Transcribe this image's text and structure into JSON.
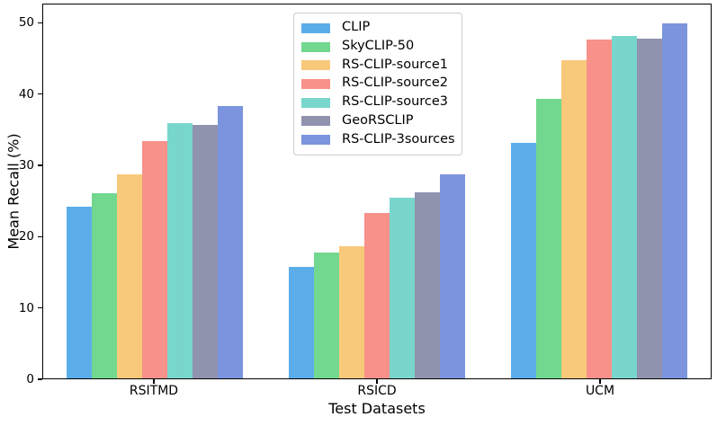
{
  "chart_data": {
    "type": "bar",
    "title": "",
    "xlabel": "Test Datasets",
    "ylabel": "Mean Recall (%)",
    "categories": [
      "RSITMD",
      "RSICD",
      "UCM"
    ],
    "series": [
      {
        "name": "CLIP",
        "color": "#5BADEA",
        "values": [
          24.2,
          15.7,
          33.2
        ]
      },
      {
        "name": "SkyCLIP-50",
        "color": "#72D78F",
        "values": [
          26.1,
          17.8,
          39.4
        ]
      },
      {
        "name": "RS-CLIP-source1",
        "color": "#F8C97B",
        "values": [
          28.7,
          18.6,
          44.9
        ]
      },
      {
        "name": "RS-CLIP-source2",
        "color": "#F7918A",
        "values": [
          33.4,
          23.3,
          47.8
        ]
      },
      {
        "name": "RS-CLIP-source3",
        "color": "#79D6CC",
        "values": [
          36.0,
          25.5,
          48.3
        ]
      },
      {
        "name": "GeoRSCLIP",
        "color": "#9093AE",
        "values": [
          35.7,
          26.2,
          47.9
        ]
      },
      {
        "name": "RS-CLIP-3sources",
        "color": "#7B94DD",
        "values": [
          38.4,
          28.7,
          50.0
        ]
      }
    ],
    "yticks": [
      0,
      10,
      20,
      30,
      40,
      50
    ],
    "ylim": [
      0,
      52.7
    ],
    "grid": false,
    "legend": {
      "position": "upper-left-of-center-inside",
      "entries": [
        "CLIP",
        "SkyCLIP-50",
        "RS-CLIP-source1",
        "RS-CLIP-source2",
        "RS-CLIP-source3",
        "GeoRSCLIP",
        "RS-CLIP-3sources"
      ]
    },
    "frame": {
      "spine_color": "#000000",
      "background": "#ffffff"
    }
  }
}
